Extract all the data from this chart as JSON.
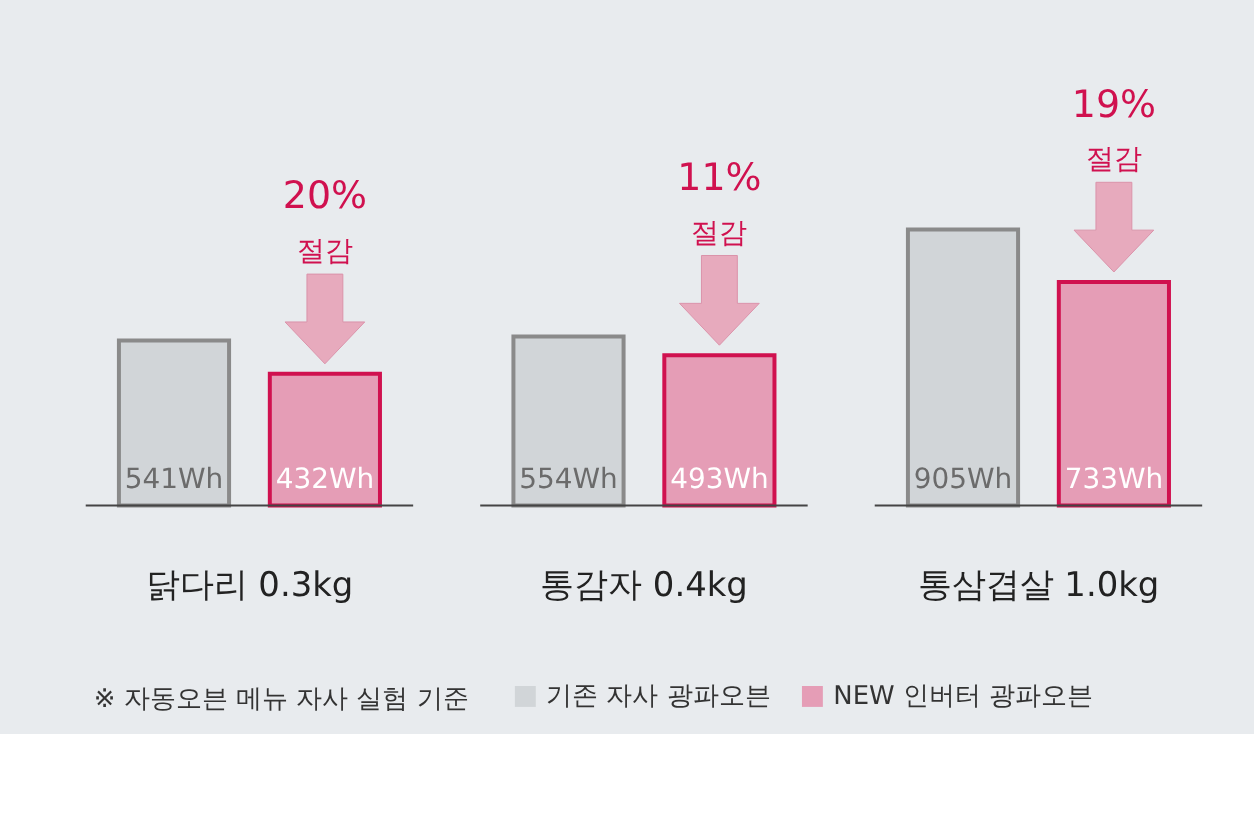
{
  "chart_data": {
    "type": "bar",
    "categories": [
      "닭다리 0.3kg",
      "통감자 0.4kg",
      "통삼겹살 1.0kg"
    ],
    "series": [
      {
        "name": "기존 자사 광파오븐",
        "color": "#d1d5d8",
        "values": [
          541,
          554,
          905
        ],
        "value_labels": [
          "541Wh",
          "554Wh",
          "905Wh"
        ]
      },
      {
        "name": "NEW 인버터 광파오븐",
        "color": "#e59db6",
        "values": [
          432,
          493,
          733
        ],
        "value_labels": [
          "432Wh",
          "493Wh",
          "733Wh"
        ]
      }
    ],
    "annotations": [
      "20%",
      "절감",
      "11%",
      "절감",
      "19%",
      "절감",
      "※ 자동오븐 메뉴 자사 실험 기준"
    ],
    "legend": "bottom"
  }
}
